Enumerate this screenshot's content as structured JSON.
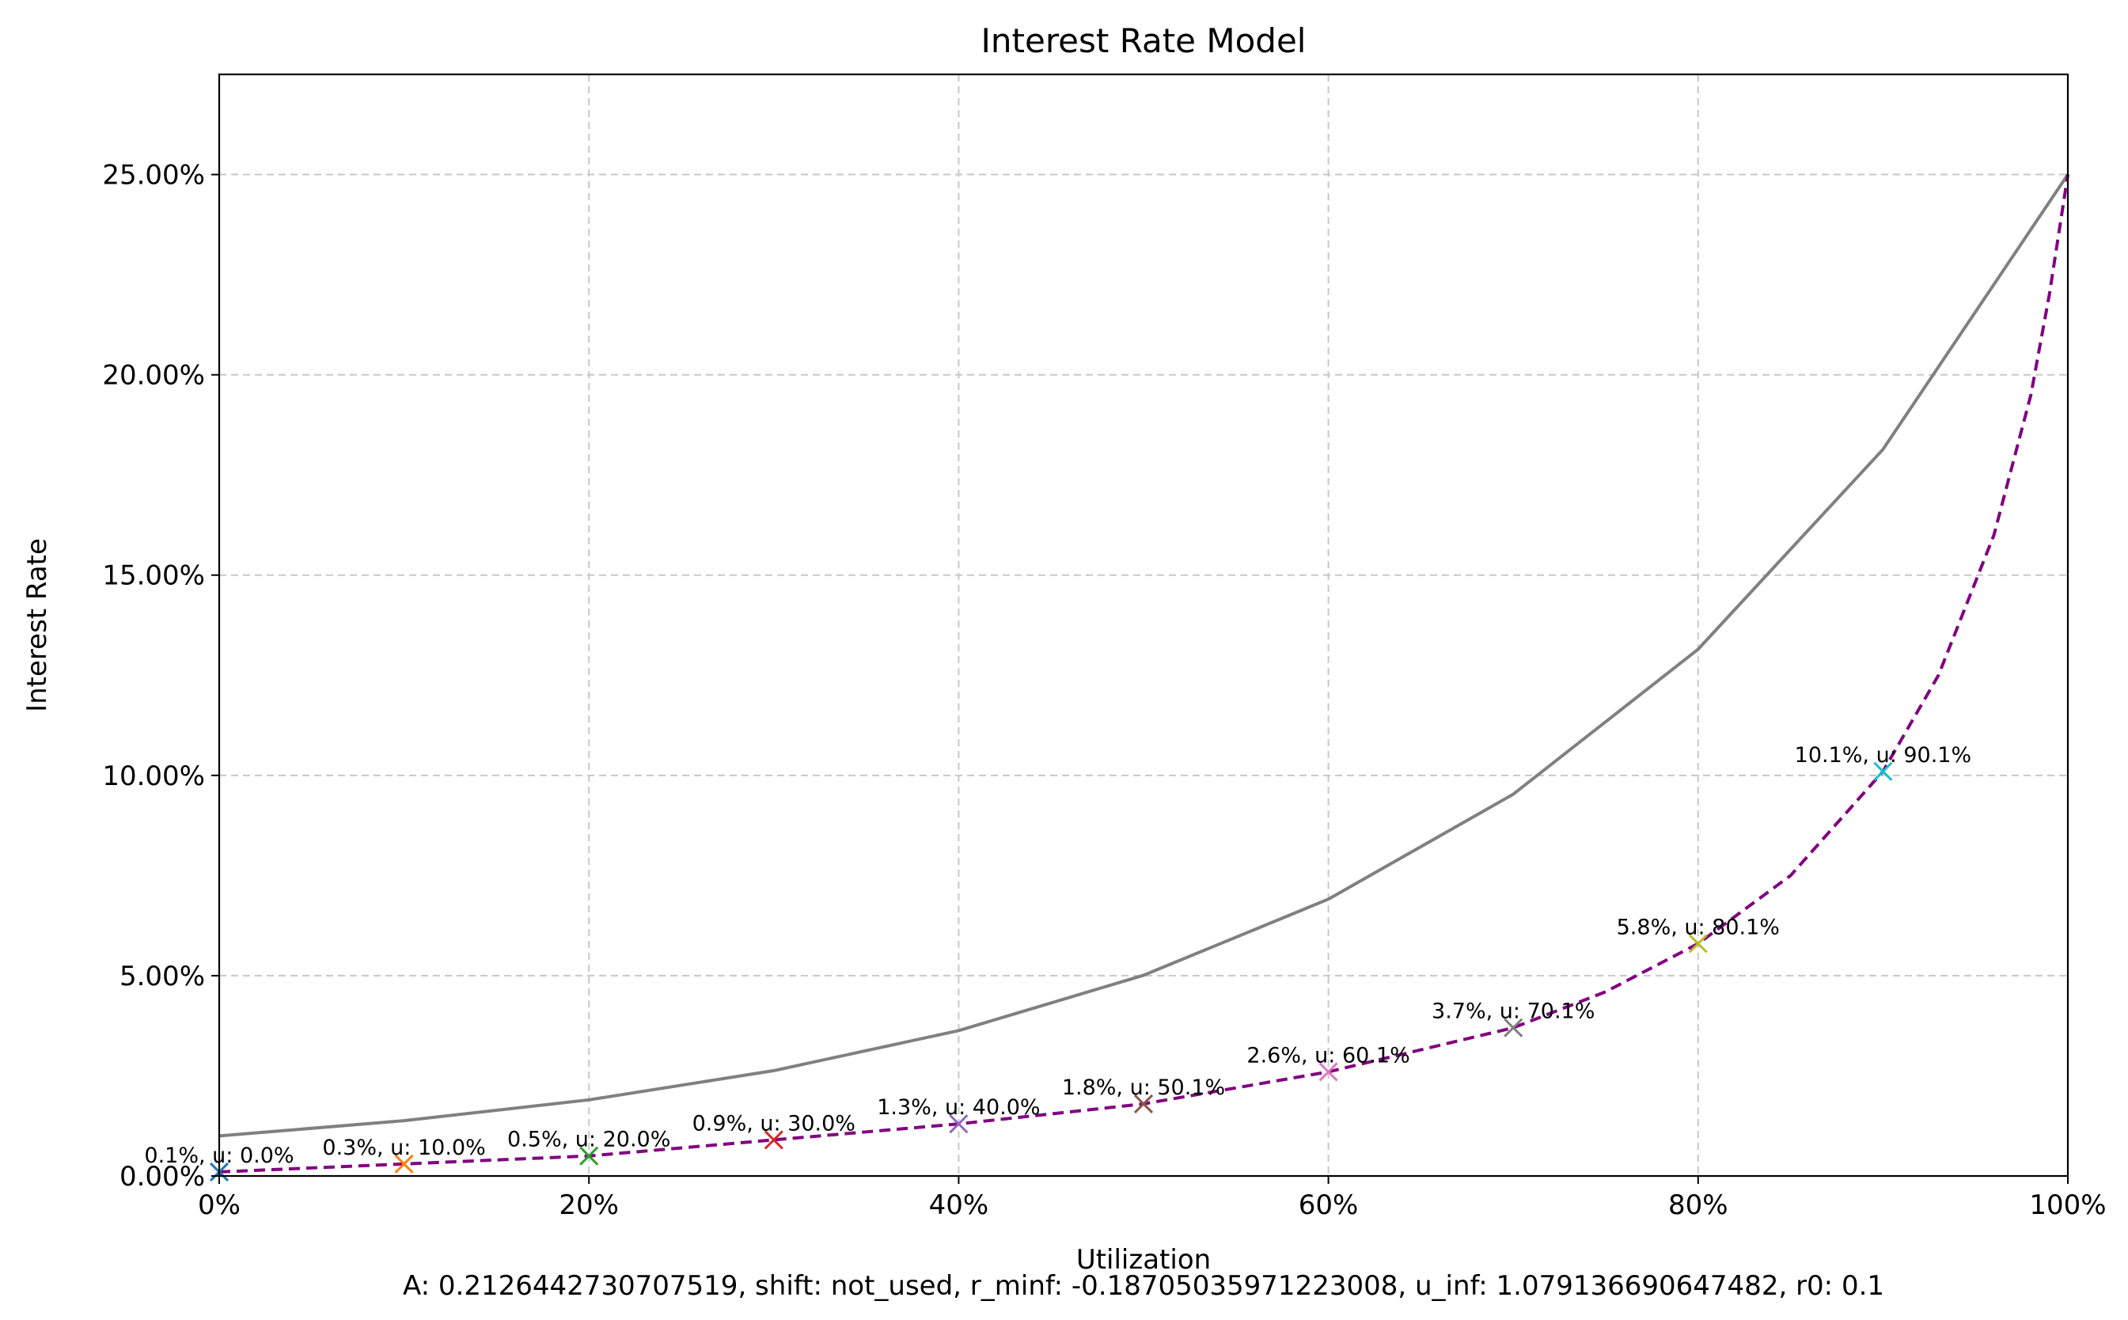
{
  "chart_data": {
    "type": "line",
    "title": "Interest Rate Model",
    "xlabel": "Utilization",
    "ylabel": "Interest Rate",
    "footer": "A: 0.2126442730707519, shift: not_used, r_minf: -0.18705035971223008, u_inf: 1.079136690647482, r0: 0.1",
    "xlim": [
      0,
      1
    ],
    "ylim": [
      0,
      0.275
    ],
    "grid": true,
    "x_ticks": [
      {
        "value": 0,
        "label": "0%"
      },
      {
        "value": 0.2,
        "label": "20%"
      },
      {
        "value": 0.4,
        "label": "40%"
      },
      {
        "value": 0.6,
        "label": "60%"
      },
      {
        "value": 0.8,
        "label": "80%"
      },
      {
        "value": 1.0,
        "label": "100%"
      }
    ],
    "y_ticks": [
      {
        "value": 0,
        "label": "0.00%"
      },
      {
        "value": 0.05,
        "label": "5.00%"
      },
      {
        "value": 0.1,
        "label": "10.00%"
      },
      {
        "value": 0.15,
        "label": "15.00%"
      },
      {
        "value": 0.2,
        "label": "20.00%"
      },
      {
        "value": 0.25,
        "label": "25.00%"
      }
    ],
    "series": [
      {
        "color": "#808080",
        "style": "solid",
        "x": [
          0,
          0.1,
          0.2,
          0.3,
          0.4,
          0.5,
          0.6,
          0.7,
          0.8,
          0.9,
          1.0
        ],
        "y": [
          0.01,
          0.0138,
          0.019,
          0.0263,
          0.0363,
          0.0501,
          0.0691,
          0.0953,
          0.1315,
          0.1814,
          0.25
        ]
      },
      {
        "color": "#800080",
        "style": "dashed",
        "x": [
          0,
          0.1,
          0.2,
          0.3,
          0.4,
          0.5,
          0.6,
          0.7,
          0.75,
          0.8,
          0.85,
          0.9,
          0.93,
          0.96,
          0.98,
          0.99,
          1.0
        ],
        "y": [
          0.001,
          0.003,
          0.005,
          0.009,
          0.013,
          0.018,
          0.026,
          0.037,
          0.046,
          0.058,
          0.075,
          0.101,
          0.125,
          0.16,
          0.195,
          0.22,
          0.25
        ]
      }
    ],
    "markers": [
      {
        "x": 0.0,
        "y": 0.001,
        "label": "0.1%, u: 0.0%",
        "color": "#1f77b4"
      },
      {
        "x": 0.1,
        "y": 0.003,
        "label": "0.3%, u: 10.0%",
        "color": "#ff7f0e"
      },
      {
        "x": 0.2,
        "y": 0.005,
        "label": "0.5%, u: 20.0%",
        "color": "#2ca02c"
      },
      {
        "x": 0.3,
        "y": 0.009,
        "label": "0.9%, u: 30.0%",
        "color": "#d62728"
      },
      {
        "x": 0.4,
        "y": 0.013,
        "label": "1.3%, u: 40.0%",
        "color": "#9467bd"
      },
      {
        "x": 0.5,
        "y": 0.018,
        "label": "1.8%, u: 50.1%",
        "color": "#8c564b"
      },
      {
        "x": 0.6,
        "y": 0.026,
        "label": "2.6%, u: 60.1%",
        "color": "#e377c2"
      },
      {
        "x": 0.7,
        "y": 0.037,
        "label": "3.7%, u: 70.1%",
        "color": "#7f7f7f"
      },
      {
        "x": 0.8,
        "y": 0.058,
        "label": "5.8%, u: 80.1%",
        "color": "#bcbd22"
      },
      {
        "x": 0.9,
        "y": 0.101,
        "label": "10.1%, u: 90.1%",
        "color": "#17becf"
      }
    ]
  }
}
